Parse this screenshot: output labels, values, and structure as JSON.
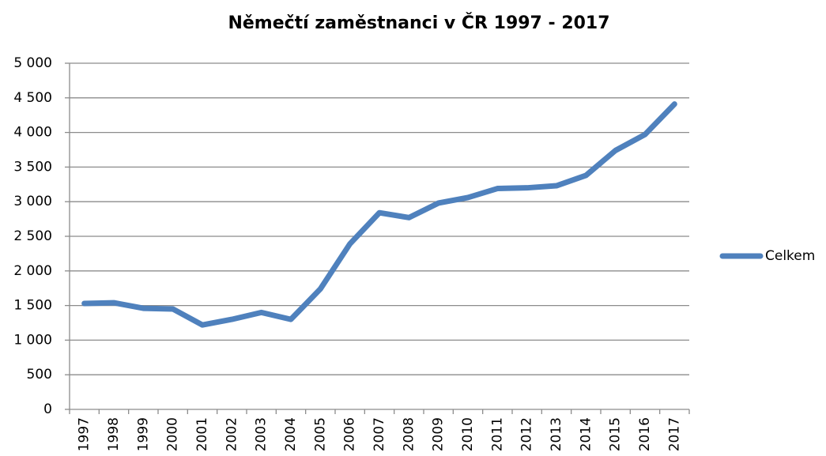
{
  "chart_data": {
    "type": "line",
    "title": "Němečtí zaměstnanci v ČR 1997 - 2017",
    "categories": [
      "1997",
      "1998",
      "1999",
      "2000",
      "2001",
      "2002",
      "2003",
      "2004",
      "2005",
      "2006",
      "2007",
      "2008",
      "2009",
      "2010",
      "2011",
      "2012",
      "2013",
      "2014",
      "2015",
      "2016",
      "2017"
    ],
    "series": [
      {
        "name": "Celkem",
        "color": "#4f81bd",
        "values": [
          1530,
          1540,
          1460,
          1450,
          1220,
          1300,
          1400,
          1300,
          1740,
          2390,
          2840,
          2770,
          2980,
          3060,
          3190,
          3200,
          3230,
          3380,
          3740,
          3970,
          4410
        ]
      }
    ],
    "ylim": [
      0,
      5000
    ],
    "yticks": [
      0,
      500,
      {
        "value": 1000,
        "label": "1 000"
      },
      {
        "value": 1500,
        "label": "1 500"
      },
      {
        "value": 2000,
        "label": "2 000"
      },
      {
        "value": 2500,
        "label": "2 500"
      },
      {
        "value": 3000,
        "label": "3 000"
      },
      {
        "value": 3500,
        "label": "3 500"
      },
      {
        "value": 4000,
        "label": "4 000"
      },
      {
        "value": 4500,
        "label": "4 500"
      },
      {
        "value": 5000,
        "label": "5 000"
      }
    ],
    "grid": true,
    "legend": "right"
  }
}
